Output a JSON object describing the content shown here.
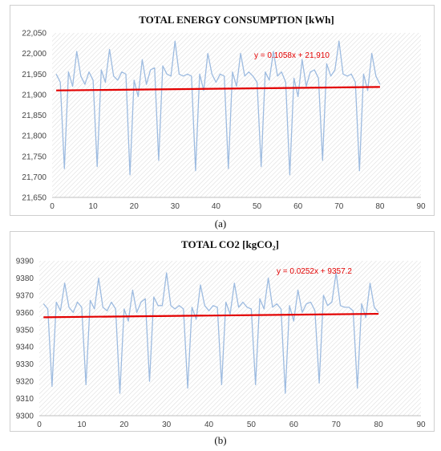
{
  "chart_data": [
    {
      "type": "line",
      "title": "TOTAL ENERGY CONSUMPTION [kWh]",
      "xlabel": "",
      "ylabel": "",
      "xlim": [
        0,
        90
      ],
      "ylim": [
        21650,
        22050
      ],
      "xticks": [
        "0",
        "10",
        "20",
        "30",
        "40",
        "50",
        "60",
        "70",
        "80",
        "90"
      ],
      "yticks": [
        "21,650",
        "21,700",
        "21,750",
        "21,800",
        "21,850",
        "21,900",
        "21,950",
        "22,000",
        "22,050"
      ],
      "grid": "hatched",
      "series": [
        {
          "color": "#9dbbe0",
          "x": [
            1,
            2,
            3,
            4,
            5,
            6,
            7,
            8,
            9,
            10,
            11,
            12,
            13,
            14,
            15,
            16,
            17,
            18,
            19,
            20,
            21,
            22,
            23,
            24,
            25,
            26,
            27,
            28,
            29,
            30,
            31,
            32,
            33,
            34,
            35,
            36,
            37,
            38,
            39,
            40,
            41,
            42,
            43,
            44,
            45,
            46,
            47,
            48,
            49,
            50,
            51,
            52,
            53,
            54,
            55,
            56,
            57,
            58,
            59,
            60,
            61,
            62,
            63,
            64,
            65,
            66,
            67,
            68,
            69,
            70,
            71,
            72,
            73,
            74,
            75,
            76,
            77,
            78,
            79,
            80
          ],
          "y": [
            21950,
            21930,
            21720,
            21955,
            21920,
            22005,
            21945,
            21925,
            21955,
            21935,
            21725,
            21960,
            21930,
            22010,
            21945,
            21935,
            21955,
            21950,
            21705,
            21935,
            21895,
            21985,
            21925,
            21960,
            21965,
            21740,
            21970,
            21950,
            21945,
            22030,
            21950,
            21945,
            21950,
            21945,
            21715,
            21950,
            21910,
            22000,
            21950,
            21930,
            21950,
            21945,
            21720,
            21955,
            21920,
            22000,
            21945,
            21955,
            21945,
            21930,
            21725,
            21955,
            21935,
            22005,
            21945,
            21955,
            21930,
            21705,
            21940,
            21895,
            21985,
            21920,
            21955,
            21960,
            21940,
            21740,
            21975,
            21945,
            21960,
            22030,
            21950,
            21945,
            21950,
            21930,
            21715,
            21950,
            21910,
            22000,
            21945,
            21925
          ]
        }
      ],
      "trendline": {
        "color": "#e30000",
        "x": [
          1,
          80
        ],
        "y": [
          21910.1,
          21918.5
        ],
        "equation": "y = 0.1058x + 21,910"
      }
    },
    {
      "type": "line",
      "title": "TOTAL CO2  [kgCO₂]",
      "xlabel": "",
      "ylabel": "",
      "xlim": [
        0,
        90
      ],
      "ylim": [
        9300,
        9390
      ],
      "xticks": [
        "0",
        "10",
        "20",
        "30",
        "40",
        "50",
        "60",
        "70",
        "80",
        "90"
      ],
      "yticks": [
        "9300",
        "9310",
        "9320",
        "9330",
        "9340",
        "9350",
        "9360",
        "9370",
        "9380",
        "9390"
      ],
      "grid": "hatched",
      "series": [
        {
          "color": "#9dbbe0",
          "x": [
            1,
            2,
            3,
            4,
            5,
            6,
            7,
            8,
            9,
            10,
            11,
            12,
            13,
            14,
            15,
            16,
            17,
            18,
            19,
            20,
            21,
            22,
            23,
            24,
            25,
            26,
            27,
            28,
            29,
            30,
            31,
            32,
            33,
            34,
            35,
            36,
            37,
            38,
            39,
            40,
            41,
            42,
            43,
            44,
            45,
            46,
            47,
            48,
            49,
            50,
            51,
            52,
            53,
            54,
            55,
            56,
            57,
            58,
            59,
            60,
            61,
            62,
            63,
            64,
            65,
            66,
            67,
            68,
            69,
            70,
            71,
            72,
            73,
            74,
            75,
            76,
            77,
            78,
            79,
            80
          ],
          "y": [
            9365,
            9362,
            9317,
            9366,
            9361,
            9377,
            9363,
            9360,
            9366,
            9363,
            9318,
            9367,
            9362,
            9380,
            9363,
            9361,
            9366,
            9362,
            9313,
            9362,
            9355,
            9373,
            9360,
            9366,
            9368,
            9320,
            9369,
            9364,
            9364,
            9383,
            9364,
            9362,
            9364,
            9362,
            9316,
            9363,
            9356,
            9376,
            9364,
            9361,
            9364,
            9363,
            9318,
            9366,
            9359,
            9377,
            9363,
            9366,
            9363,
            9362,
            9318,
            9368,
            9362,
            9380,
            9363,
            9365,
            9362,
            9313,
            9364,
            9355,
            9373,
            9360,
            9365,
            9366,
            9361,
            9319,
            9370,
            9364,
            9366,
            9383,
            9364,
            9363,
            9363,
            9361,
            9316,
            9365,
            9357,
            9377,
            9363,
            9360
          ]
        }
      ],
      "trendline": {
        "color": "#e30000",
        "x": [
          1,
          80
        ],
        "y": [
          9357.2,
          9359.2
        ],
        "equation": "y = 0.0252x + 9357.2"
      }
    }
  ],
  "captions": [
    "(a)",
    "(b)"
  ]
}
